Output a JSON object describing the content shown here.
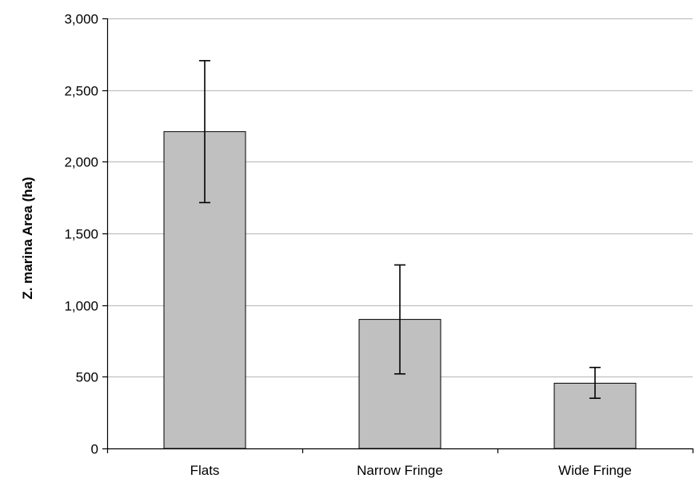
{
  "chart_data": {
    "type": "bar",
    "title": "",
    "xlabel": "",
    "ylabel": "Z. marina Area (ha)",
    "categories": [
      "Flats",
      "Narrow  Fringe",
      "Wide Fringe"
    ],
    "values": [
      2210,
      900,
      455
    ],
    "error_bars": [
      {
        "low": 1715,
        "high": 2705
      },
      {
        "low": 520,
        "high": 1280
      },
      {
        "low": 350,
        "high": 565
      }
    ],
    "ylim": [
      0,
      3000
    ],
    "yticks": [
      0,
      500,
      1000,
      1500,
      2000,
      2500,
      3000
    ],
    "ytick_labels": [
      "0",
      "500",
      "1,000",
      "1,500",
      "2,000",
      "2,500",
      "3,000"
    ],
    "grid": true,
    "legend": "none",
    "colors": {
      "bar_fill": "#c0c0c0",
      "bar_stroke": "#000000",
      "grid": "#c0c0c0",
      "axis": "#000000",
      "error_bar": "#000000"
    }
  }
}
